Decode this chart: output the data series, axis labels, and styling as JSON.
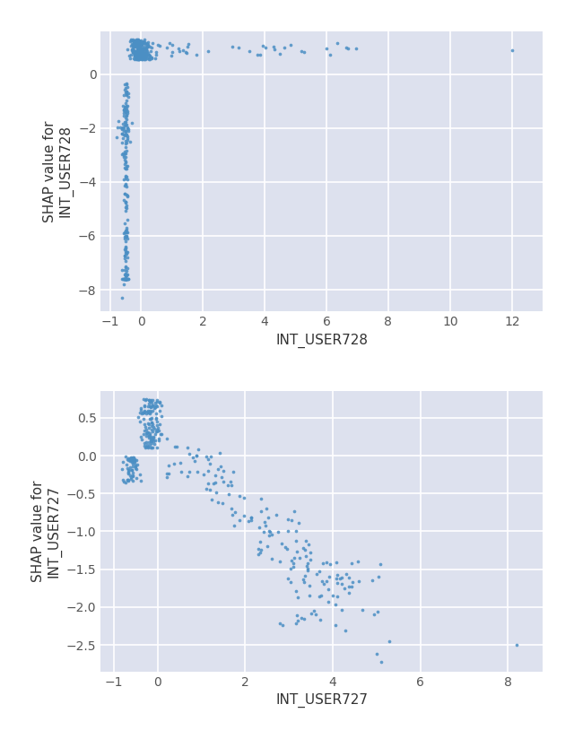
{
  "background_color": "#dde1ee",
  "outer_background": "#ffffff",
  "dot_color": "#4b8fc4",
  "dot_size": 7,
  "dot_alpha": 0.85,
  "plot1": {
    "xlabel": "INT_USER728",
    "ylabel": "SHAP value for\nINT_USER728",
    "xlim": [
      -1.3,
      13.0
    ],
    "ylim": [
      -8.8,
      1.6
    ],
    "xticks": [
      -1,
      0,
      2,
      4,
      6,
      8,
      10,
      12
    ],
    "yticks": [
      -8,
      -6,
      -4,
      -2,
      0
    ]
  },
  "plot2": {
    "xlabel": "INT_USER727",
    "ylabel": "SHAP value for\nINT_USER727",
    "xlim": [
      -1.3,
      8.8
    ],
    "ylim": [
      -2.85,
      0.85
    ],
    "xticks": [
      -1,
      0,
      2,
      4,
      6,
      8
    ],
    "yticks": [
      -2.5,
      -2.0,
      -1.5,
      -1.0,
      -0.5,
      0.0,
      0.5
    ]
  }
}
